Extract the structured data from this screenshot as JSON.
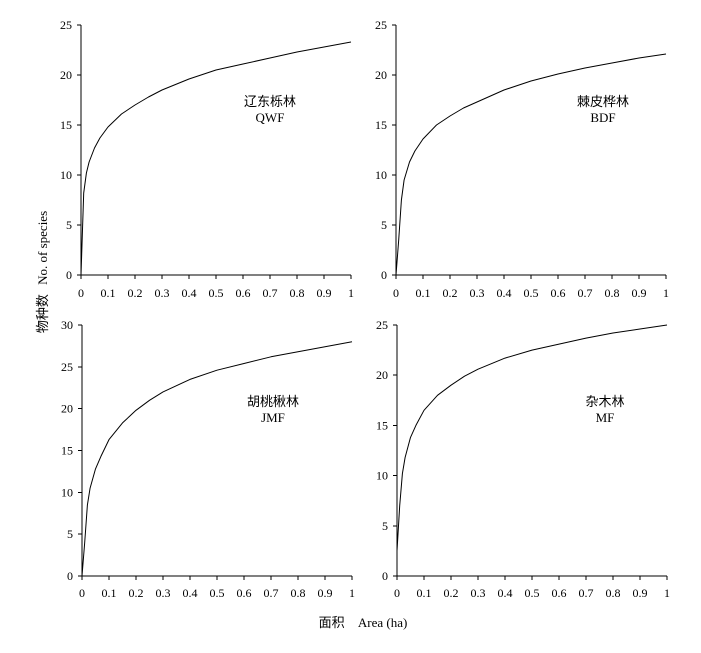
{
  "figure": {
    "ylabel": {
      "cn": "物种数",
      "en": "No. of species"
    },
    "xlabel": {
      "cn": "面积",
      "en": "Area (ha)"
    }
  },
  "chart_data": [
    {
      "type": "line",
      "label_cn": "辽东栎林",
      "label_code": "QWF",
      "grid": false,
      "xlim": [
        0,
        1
      ],
      "ylim": [
        0,
        25
      ],
      "xticks": [
        "0",
        "0.1",
        "0.2",
        "0.3",
        "0.4",
        "0.5",
        "0.6",
        "0.7",
        "0.8",
        "0.9",
        "1"
      ],
      "yticks": [
        "0",
        "5",
        "10",
        "15",
        "20",
        "25"
      ],
      "x": [
        0,
        0.01,
        0.02,
        0.03,
        0.05,
        0.07,
        0.1,
        0.15,
        0.2,
        0.25,
        0.3,
        0.4,
        0.5,
        0.6,
        0.7,
        0.8,
        0.9,
        1.0
      ],
      "y": [
        0,
        8.2,
        10.2,
        11.3,
        12.7,
        13.7,
        14.8,
        16.1,
        17.0,
        17.8,
        18.5,
        19.6,
        20.5,
        21.1,
        21.7,
        22.3,
        22.8,
        23.3
      ]
    },
    {
      "type": "line",
      "label_cn": "棘皮桦林",
      "label_code": "BDF",
      "grid": false,
      "xlim": [
        0,
        1
      ],
      "ylim": [
        0,
        25
      ],
      "xticks": [
        "0",
        "0.1",
        "0.2",
        "0.3",
        "0.4",
        "0.5",
        "0.6",
        "0.7",
        "0.8",
        "0.9",
        "1"
      ],
      "yticks": [
        "0",
        "5",
        "10",
        "15",
        "20",
        "25"
      ],
      "x": [
        0,
        0.01,
        0.02,
        0.03,
        0.05,
        0.07,
        0.1,
        0.15,
        0.2,
        0.25,
        0.3,
        0.4,
        0.5,
        0.6,
        0.7,
        0.8,
        0.9,
        1.0
      ],
      "y": [
        0,
        3.5,
        7.5,
        9.5,
        11.3,
        12.4,
        13.6,
        15.0,
        15.9,
        16.7,
        17.3,
        18.5,
        19.4,
        20.1,
        20.7,
        21.2,
        21.7,
        22.1
      ]
    },
    {
      "type": "line",
      "label_cn": "胡桃楸林",
      "label_code": "JMF",
      "grid": false,
      "xlim": [
        0,
        1
      ],
      "ylim": [
        0,
        30
      ],
      "xticks": [
        "0",
        "0.1",
        "0.2",
        "0.3",
        "0.4",
        "0.5",
        "0.6",
        "0.7",
        "0.8",
        "0.9",
        "1"
      ],
      "yticks": [
        "0",
        "5",
        "10",
        "15",
        "20",
        "25",
        "30"
      ],
      "x": [
        0,
        0.01,
        0.02,
        0.03,
        0.05,
        0.07,
        0.1,
        0.15,
        0.2,
        0.25,
        0.3,
        0.4,
        0.5,
        0.6,
        0.7,
        0.8,
        0.9,
        1.0
      ],
      "y": [
        0,
        4.0,
        8.5,
        10.5,
        12.8,
        14.3,
        16.3,
        18.3,
        19.8,
        21.0,
        22.0,
        23.5,
        24.6,
        25.4,
        26.2,
        26.8,
        27.4,
        28.0
      ]
    },
    {
      "type": "line",
      "label_cn": "杂木林",
      "label_code": "MF",
      "grid": false,
      "xlim": [
        0,
        1
      ],
      "ylim": [
        0,
        25
      ],
      "xticks": [
        "0",
        "0.1",
        "0.2",
        "0.3",
        "0.4",
        "0.5",
        "0.6",
        "0.7",
        "0.8",
        "0.9",
        "1"
      ],
      "yticks": [
        "0",
        "5",
        "10",
        "15",
        "20",
        "25"
      ],
      "x": [
        0,
        0.01,
        0.02,
        0.03,
        0.05,
        0.07,
        0.1,
        0.15,
        0.2,
        0.25,
        0.3,
        0.4,
        0.5,
        0.6,
        0.7,
        0.8,
        0.9,
        1.0
      ],
      "y": [
        2.5,
        7.0,
        10.2,
        11.8,
        13.8,
        15.0,
        16.5,
        18.0,
        19.0,
        19.9,
        20.6,
        21.7,
        22.5,
        23.1,
        23.7,
        24.2,
        24.6,
        25.0
      ]
    }
  ]
}
